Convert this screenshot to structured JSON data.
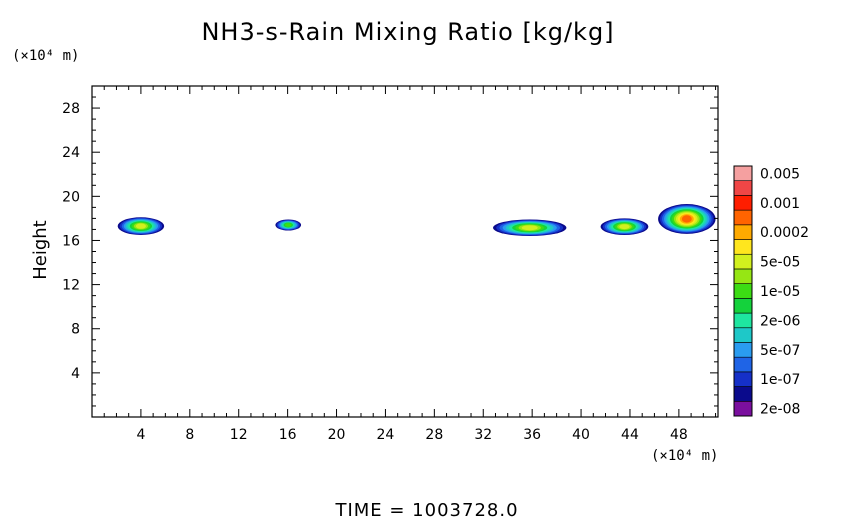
{
  "chart_data": {
    "type": "heatmap",
    "title": "NH3-s-Rain Mixing Ratio [kg/kg]",
    "ylabel": "Height",
    "y_unit": "(×10⁴ m)",
    "x_unit": "(×10⁴ m)",
    "footer": "TIME  =  1003728.0",
    "xlim": [
      0,
      51.2
    ],
    "ylim": [
      0,
      30
    ],
    "x_ticks": [
      4,
      8,
      12,
      16,
      20,
      24,
      28,
      32,
      36,
      40,
      44,
      48
    ],
    "y_ticks": [
      4,
      8,
      12,
      16,
      20,
      24,
      28
    ],
    "legend": {
      "levels": [
        {
          "label": "2e-08",
          "color": "#7a0f9e"
        },
        {
          "label": "",
          "color": "#0a0a8c"
        },
        {
          "label": "1e-07",
          "color": "#1530c8"
        },
        {
          "label": "",
          "color": "#1f64e6"
        },
        {
          "label": "5e-07",
          "color": "#2a9cf0"
        },
        {
          "label": "",
          "color": "#1ec8c8"
        },
        {
          "label": "2e-06",
          "color": "#1ee6a0"
        },
        {
          "label": "",
          "color": "#14d23c"
        },
        {
          "label": "1e-05",
          "color": "#3cdc14"
        },
        {
          "label": "",
          "color": "#96e614"
        },
        {
          "label": "5e-05",
          "color": "#d2f01e"
        },
        {
          "label": "",
          "color": "#ffe61e"
        },
        {
          "label": "0.0002",
          "color": "#ffaa00"
        },
        {
          "label": "",
          "color": "#ff6400"
        },
        {
          "label": "0.001",
          "color": "#ff1e00"
        },
        {
          "label": "",
          "color": "#f04646"
        },
        {
          "label": "0.005",
          "color": "#f5a0a0"
        }
      ]
    },
    "regions": [
      {
        "name": "cloud-1",
        "x0": 2.1,
        "x1": 5.9,
        "y0": 16.5,
        "y1": 18.1,
        "peak_level": 10
      },
      {
        "name": "cloud-2",
        "x0": 15.0,
        "x1": 17.1,
        "y0": 16.9,
        "y1": 17.9,
        "peak_level": 8
      },
      {
        "name": "cloud-3",
        "x0": 32.8,
        "x1": 38.8,
        "y0": 16.4,
        "y1": 17.9,
        "peak_level": 10
      },
      {
        "name": "cloud-4",
        "x0": 41.6,
        "x1": 45.5,
        "y0": 16.5,
        "y1": 18.0,
        "peak_level": 10
      },
      {
        "name": "cloud-5",
        "x0": 46.3,
        "x1": 51.0,
        "y0": 16.6,
        "y1": 19.3,
        "peak_level": 13
      }
    ]
  }
}
